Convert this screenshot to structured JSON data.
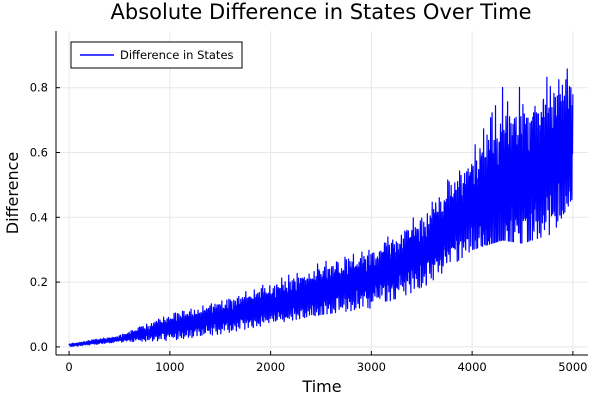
{
  "chart_data": {
    "type": "line",
    "title": "Absolute Difference in States Over Time",
    "xlabel": "Time",
    "ylabel": "Difference",
    "xlim": [
      -130,
      5150
    ],
    "ylim": [
      -0.025,
      0.975
    ],
    "x_ticks": [
      0,
      1000,
      2000,
      3000,
      4000,
      5000
    ],
    "y_ticks": [
      0.0,
      0.2,
      0.4,
      0.6,
      0.8
    ],
    "x_tick_labels": [
      "0",
      "1000",
      "2000",
      "3000",
      "4000",
      "5000"
    ],
    "y_tick_labels": [
      "0.0",
      "0.2",
      "0.4",
      "0.6",
      "0.8"
    ],
    "grid": true,
    "legend": {
      "position": "top-left"
    },
    "series": [
      {
        "name": "Difference in States",
        "color": "#0000ff",
        "envelope_x": [
          0,
          500,
          1000,
          1500,
          2000,
          2500,
          3000,
          3500,
          4000,
          4300,
          4500,
          4800,
          5000
        ],
        "envelope_low": [
          0.0,
          0.015,
          0.02,
          0.04,
          0.07,
          0.1,
          0.12,
          0.18,
          0.3,
          0.33,
          0.32,
          0.35,
          0.46
        ],
        "envelope_high": [
          0.01,
          0.035,
          0.1,
          0.14,
          0.2,
          0.26,
          0.3,
          0.42,
          0.62,
          0.88,
          0.8,
          0.84,
          0.95
        ],
        "center_x": [
          0,
          500,
          1000,
          1500,
          2000,
          2500,
          3000,
          3500,
          4000,
          4500,
          5000
        ],
        "center_y": [
          0.005,
          0.025,
          0.06,
          0.09,
          0.13,
          0.17,
          0.21,
          0.29,
          0.44,
          0.52,
          0.62
        ]
      }
    ]
  }
}
